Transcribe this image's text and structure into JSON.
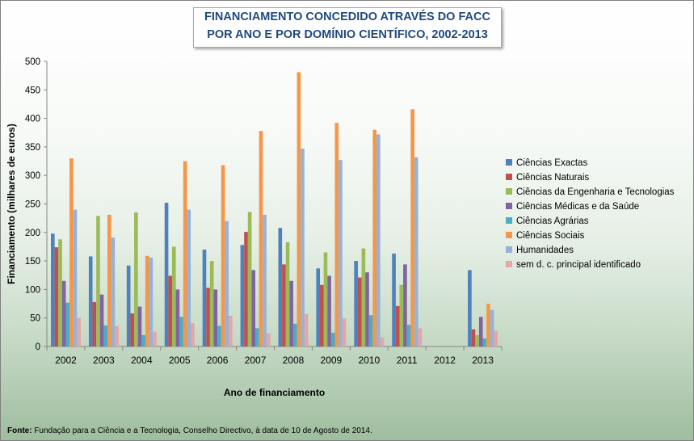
{
  "title_lines": [
    "FINANCIAMENTO CONCEDIDO ATRAVÉS DO FACC",
    "POR ANO E POR DOMÍNIO CIENTÍFICO, 2002-2013"
  ],
  "source_label": "Fonte:",
  "source_text": " Fundação para a Ciência e a Tecnologia, Conselho Directivo, à data de 10 de Agosto de 2014.",
  "chart_data": {
    "type": "bar",
    "title": "FINANCIAMENTO CONCEDIDO ATRAVÉS DO FACC POR ANO E POR DOMÍNIO CIENTÍFICO, 2002-2013",
    "xlabel": "Ano de financiamento",
    "ylabel": "Financiamento (milhares de euros)",
    "ylim": [
      0,
      500
    ],
    "yticks": [
      0,
      50,
      100,
      150,
      200,
      250,
      300,
      350,
      400,
      450,
      500
    ],
    "grid": false,
    "legend_position": "right",
    "categories": [
      "2002",
      "2003",
      "2004",
      "2005",
      "2006",
      "2007",
      "2008",
      "2009",
      "2010",
      "2011",
      "2012",
      "2013"
    ],
    "series": [
      {
        "name": "Ciências Exactas",
        "color": "#4f81bd",
        "values": [
          198,
          158,
          142,
          252,
          170,
          178,
          208,
          137,
          150,
          163,
          0,
          134
        ]
      },
      {
        "name": "Ciências Naturais",
        "color": "#c0504d",
        "values": [
          174,
          78,
          58,
          124,
          103,
          201,
          144,
          108,
          121,
          71,
          0,
          30
        ]
      },
      {
        "name": "Ciências da Engenharia e Tecnologias",
        "color": "#9bbb59",
        "values": [
          188,
          229,
          235,
          175,
          150,
          236,
          183,
          165,
          172,
          108,
          0,
          20
        ]
      },
      {
        "name": "Ciências Médicas e da Saúde",
        "color": "#8064a2",
        "values": [
          115,
          91,
          70,
          100,
          100,
          134,
          115,
          124,
          130,
          144,
          0,
          52
        ]
      },
      {
        "name": "Ciências Agrárias",
        "color": "#4bacc6",
        "values": [
          77,
          37,
          20,
          52,
          36,
          32,
          40,
          24,
          55,
          38,
          0,
          14
        ]
      },
      {
        "name": "Ciências Sociais",
        "color": "#f79646",
        "values": [
          330,
          231,
          159,
          325,
          318,
          378,
          481,
          392,
          380,
          416,
          0,
          75
        ]
      },
      {
        "name": "Humanidades",
        "color": "#95b3d7",
        "values": [
          240,
          191,
          156,
          240,
          220,
          231,
          347,
          327,
          372,
          332,
          0,
          64
        ]
      },
      {
        "name": "sem d. c. principal identificado",
        "color": "#e6a6a5",
        "values": [
          50,
          36,
          26,
          41,
          54,
          23,
          57,
          49,
          16,
          32,
          0,
          28
        ]
      }
    ]
  }
}
